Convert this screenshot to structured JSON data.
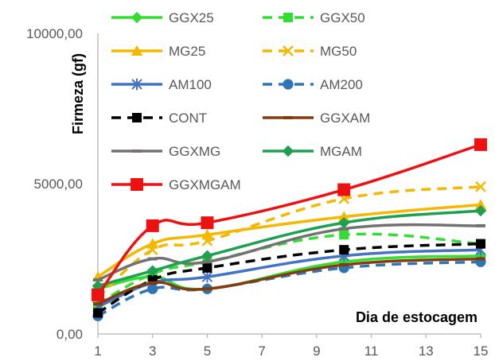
{
  "chart_data": {
    "type": "line",
    "title": "",
    "xlabel": "Dia de estocagem",
    "ylabel": "Firmeza (gf)",
    "x_ticks": [
      "1",
      "3",
      "5",
      "7",
      "9",
      "11",
      "13",
      "15"
    ],
    "y_ticks": [
      "0,00",
      "5000,00",
      "10000,00"
    ],
    "xlim": [
      1,
      15
    ],
    "ylim": [
      0,
      10000
    ],
    "grid": false,
    "legend_position": "top-left",
    "x": [
      1,
      3,
      5,
      10,
      15
    ],
    "series": [
      {
        "name": "GGX25",
        "color": "#33dd33",
        "dashed": false,
        "marker": "diamond",
        "values": [
          1500,
          1900,
          1500,
          2400,
          2600
        ]
      },
      {
        "name": "GGX50",
        "color": "#33dd33",
        "dashed": true,
        "marker": "square",
        "values": [
          1000,
          2000,
          2400,
          3300,
          3000
        ]
      },
      {
        "name": "MG25",
        "color": "#f5b800",
        "dashed": false,
        "marker": "triangle",
        "values": [
          1900,
          3000,
          3300,
          3900,
          4300
        ]
      },
      {
        "name": "MG50",
        "color": "#f5b800",
        "dashed": true,
        "marker": "x",
        "values": [
          1200,
          2800,
          3100,
          4500,
          4900
        ]
      },
      {
        "name": "AM100",
        "color": "#4472c4",
        "dashed": false,
        "marker": "star",
        "values": [
          900,
          1700,
          1900,
          2600,
          2800
        ]
      },
      {
        "name": "AM200",
        "color": "#2e75b6",
        "dashed": true,
        "marker": "circle",
        "values": [
          600,
          1500,
          1500,
          2200,
          2400
        ]
      },
      {
        "name": "CONT",
        "color": "#000000",
        "dashed": true,
        "marker": "square",
        "values": [
          700,
          1800,
          2200,
          2800,
          3000
        ]
      },
      {
        "name": "GGXAM",
        "color": "#843c0c",
        "dashed": false,
        "marker": "dash",
        "values": [
          1000,
          1700,
          1500,
          2300,
          2500
        ]
      },
      {
        "name": "GGXMG",
        "color": "#767171",
        "dashed": false,
        "marker": "dash",
        "values": [
          1800,
          2500,
          2400,
          3500,
          3600
        ]
      },
      {
        "name": "MGAM",
        "color": "#1fa050",
        "dashed": false,
        "marker": "diamond",
        "values": [
          1600,
          2100,
          2600,
          3700,
          4100
        ]
      },
      {
        "name": "GGXMGAM",
        "color": "#ee1111",
        "dashed": false,
        "marker": "square",
        "values": [
          1300,
          3600,
          3700,
          4800,
          6300
        ]
      }
    ]
  }
}
